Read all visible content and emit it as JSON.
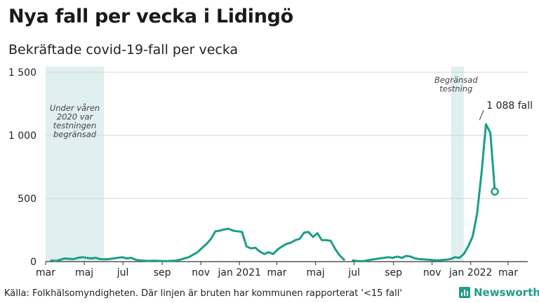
{
  "title": "Nya fall per vecka i Lidingö",
  "subtitle": "Bekräftade covid-19-fall per vecka",
  "footer": {
    "source": "Källa: Folkhälsomyndigheten. Där linjen är bruten har kommunen rapporterat '<15 fall'",
    "brand": "Newsworthy",
    "brand_icon": "bar-chart-icon"
  },
  "colors": {
    "line": "#1a9e89",
    "shade": "#dff0ee",
    "grid": "#d6d6d6"
  },
  "chart_data": {
    "type": "line",
    "title": "Nya fall per vecka i Lidingö",
    "subtitle": "Bekräftade covid-19-fall per vecka",
    "ylim": [
      0,
      1500
    ],
    "yticks": [
      0,
      500,
      1000,
      1500
    ],
    "ytick_labels": [
      "0",
      "500",
      "1 000",
      "1 500"
    ],
    "grid": true,
    "x_start": "2020-03-01",
    "x_end": "2022-04-01",
    "xticks": [
      {
        "date": "2020-03-01",
        "label": "mar"
      },
      {
        "date": "2020-05-01",
        "label": "maj"
      },
      {
        "date": "2020-07-01",
        "label": "jul"
      },
      {
        "date": "2020-09-01",
        "label": "sep"
      },
      {
        "date": "2020-11-01",
        "label": "nov"
      },
      {
        "date": "2021-01-01",
        "label": "jan 2021"
      },
      {
        "date": "2021-03-01",
        "label": "mar"
      },
      {
        "date": "2021-05-01",
        "label": "maj"
      },
      {
        "date": "2021-07-01",
        "label": "jul"
      },
      {
        "date": "2021-09-01",
        "label": "sep"
      },
      {
        "date": "2021-11-01",
        "label": "nov"
      },
      {
        "date": "2022-01-01",
        "label": "jan 2022"
      },
      {
        "date": "2022-03-01",
        "label": "mar"
      }
    ],
    "shaded_periods": [
      {
        "start": "2020-03-01",
        "end": "2020-06-01",
        "label": "Under våren 2020 var testningen begränsad",
        "label_lines": [
          "Under våren",
          "2020 var",
          "testningen",
          "begränsad"
        ]
      },
      {
        "start": "2021-12-01",
        "end": "2021-12-21",
        "label": "Begränsad testning",
        "label_lines": [
          "Begränsad",
          "testning"
        ]
      }
    ],
    "annotations": [
      {
        "text": "1 088 fall",
        "date": "2022-01-17",
        "value": 1088
      }
    ],
    "series": [
      {
        "points": [
          [
            "2020-03-10",
            10
          ],
          [
            "2020-03-17",
            5
          ],
          [
            "2020-03-24",
            15
          ],
          [
            "2020-03-31",
            25
          ],
          [
            "2020-04-07",
            22
          ],
          [
            "2020-04-14",
            20
          ],
          [
            "2020-04-21",
            30
          ],
          [
            "2020-04-28",
            35
          ],
          [
            "2020-05-05",
            30
          ],
          [
            "2020-05-12",
            25
          ],
          [
            "2020-05-19",
            30
          ],
          [
            "2020-05-26",
            20
          ],
          [
            "2020-06-02",
            18
          ],
          [
            "2020-06-09",
            20
          ],
          [
            "2020-06-16",
            25
          ],
          [
            "2020-06-23",
            30
          ],
          [
            "2020-06-30",
            35
          ],
          [
            "2020-07-07",
            25
          ],
          [
            "2020-07-14",
            30
          ],
          [
            "2020-07-21",
            15
          ],
          [
            "2020-07-28",
            10
          ],
          [
            "2020-08-04",
            8
          ],
          [
            "2020-08-11",
            5
          ],
          [
            "2020-08-18",
            8
          ],
          [
            "2020-08-25",
            6
          ],
          [
            "2020-09-01",
            5
          ],
          [
            "2020-09-08",
            4
          ],
          [
            "2020-09-15",
            6
          ],
          [
            "2020-09-22",
            8
          ],
          [
            "2020-09-29",
            15
          ],
          [
            "2020-10-06",
            25
          ],
          [
            "2020-10-13",
            35
          ],
          [
            "2020-10-20",
            55
          ],
          [
            "2020-10-27",
            75
          ],
          [
            "2020-11-03",
            110
          ],
          [
            "2020-11-10",
            140
          ],
          [
            "2020-11-17",
            180
          ],
          [
            "2020-11-24",
            240
          ],
          [
            "2020-12-01",
            245
          ],
          [
            "2020-12-08",
            255
          ],
          [
            "2020-12-15",
            260
          ],
          [
            "2020-12-22",
            245
          ],
          [
            "2020-12-29",
            240
          ],
          [
            "2021-01-05",
            235
          ],
          [
            "2021-01-12",
            120
          ],
          [
            "2021-01-19",
            105
          ],
          [
            "2021-01-26",
            110
          ],
          [
            "2021-02-02",
            80
          ],
          [
            "2021-02-09",
            60
          ],
          [
            "2021-02-16",
            75
          ],
          [
            "2021-02-23",
            60
          ],
          [
            "2021-03-02",
            95
          ],
          [
            "2021-03-09",
            120
          ],
          [
            "2021-03-16",
            140
          ],
          [
            "2021-03-23",
            150
          ],
          [
            "2021-03-30",
            170
          ],
          [
            "2021-04-06",
            180
          ],
          [
            "2021-04-13",
            230
          ],
          [
            "2021-04-20",
            235
          ],
          [
            "2021-04-27",
            195
          ],
          [
            "2021-05-04",
            225
          ],
          [
            "2021-05-11",
            170
          ],
          [
            "2021-05-18",
            170
          ],
          [
            "2021-05-25",
            165
          ],
          [
            "2021-06-01",
            100
          ],
          [
            "2021-06-08",
            50
          ],
          [
            "2021-06-15",
            15
          ]
        ]
      },
      {
        "points": [
          [
            "2021-06-29",
            10
          ],
          [
            "2021-07-06",
            5
          ],
          [
            "2021-07-13",
            3
          ],
          [
            "2021-07-20",
            8
          ],
          [
            "2021-07-27",
            15
          ],
          [
            "2021-08-03",
            20
          ],
          [
            "2021-08-10",
            25
          ],
          [
            "2021-08-17",
            30
          ],
          [
            "2021-08-24",
            35
          ],
          [
            "2021-08-31",
            30
          ],
          [
            "2021-09-07",
            40
          ],
          [
            "2021-09-14",
            30
          ],
          [
            "2021-09-21",
            45
          ],
          [
            "2021-09-28",
            40
          ],
          [
            "2021-10-05",
            25
          ],
          [
            "2021-10-12",
            20
          ],
          [
            "2021-10-19",
            18
          ],
          [
            "2021-10-26",
            15
          ],
          [
            "2021-11-02",
            12
          ],
          [
            "2021-11-09",
            10
          ],
          [
            "2021-11-16",
            12
          ],
          [
            "2021-11-23",
            15
          ],
          [
            "2021-11-30",
            20
          ],
          [
            "2021-12-07",
            35
          ],
          [
            "2021-12-14",
            30
          ],
          [
            "2021-12-21",
            60
          ],
          [
            "2021-12-28",
            120
          ],
          [
            "2022-01-04",
            200
          ],
          [
            "2022-01-11",
            380
          ],
          [
            "2022-01-18",
            700
          ],
          [
            "2022-01-25",
            1088
          ],
          [
            "2022-02-01",
            1020
          ],
          [
            "2022-02-08",
            555
          ]
        ]
      }
    ]
  }
}
